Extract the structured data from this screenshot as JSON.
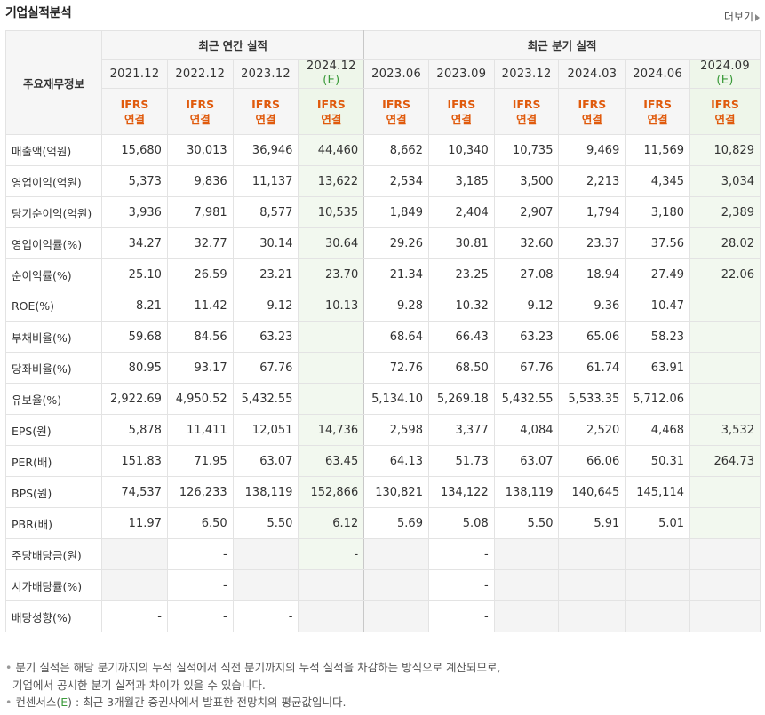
{
  "header": {
    "title": "기업실적분석",
    "more_label": "더보기"
  },
  "table": {
    "row_head": "주요재무정보",
    "group_annual": "최근 연간 실적",
    "group_quarter": "최근 분기 실적",
    "periods": [
      {
        "label": "2021.12",
        "est": ""
      },
      {
        "label": "2022.12",
        "est": ""
      },
      {
        "label": "2023.12",
        "est": ""
      },
      {
        "label": "2024.12",
        "est": "(E)"
      },
      {
        "label": "2023.06",
        "est": ""
      },
      {
        "label": "2023.09",
        "est": ""
      },
      {
        "label": "2023.12",
        "est": ""
      },
      {
        "label": "2024.03",
        "est": ""
      },
      {
        "label": "2024.06",
        "est": ""
      },
      {
        "label": "2024.09",
        "est": "(E)"
      }
    ],
    "ifrs_line1": "IFRS",
    "ifrs_line2": "연결",
    "rows": [
      {
        "label": "매출액(억원)",
        "values": [
          "15,680",
          "30,013",
          "36,946",
          "44,460",
          "8,662",
          "10,340",
          "10,735",
          "9,469",
          "11,569",
          "10,829"
        ]
      },
      {
        "label": "영업이익(억원)",
        "values": [
          "5,373",
          "9,836",
          "11,137",
          "13,622",
          "2,534",
          "3,185",
          "3,500",
          "2,213",
          "4,345",
          "3,034"
        ]
      },
      {
        "label": "당기순이익(억원)",
        "values": [
          "3,936",
          "7,981",
          "8,577",
          "10,535",
          "1,849",
          "2,404",
          "2,907",
          "1,794",
          "3,180",
          "2,389"
        ]
      },
      {
        "label": "영업이익률(%)",
        "values": [
          "34.27",
          "32.77",
          "30.14",
          "30.64",
          "29.26",
          "30.81",
          "32.60",
          "23.37",
          "37.56",
          "28.02"
        ]
      },
      {
        "label": "순이익률(%)",
        "values": [
          "25.10",
          "26.59",
          "23.21",
          "23.70",
          "21.34",
          "23.25",
          "27.08",
          "18.94",
          "27.49",
          "22.06"
        ]
      },
      {
        "label": "ROE(%)",
        "values": [
          "8.21",
          "11.42",
          "9.12",
          "10.13",
          "9.28",
          "10.32",
          "9.12",
          "9.36",
          "10.47",
          ""
        ]
      },
      {
        "label": "부채비율(%)",
        "values": [
          "59.68",
          "84.56",
          "63.23",
          "",
          "68.64",
          "66.43",
          "63.23",
          "65.06",
          "58.23",
          ""
        ]
      },
      {
        "label": "당좌비율(%)",
        "values": [
          "80.95",
          "93.17",
          "67.76",
          "",
          "72.76",
          "68.50",
          "67.76",
          "61.74",
          "63.91",
          ""
        ]
      },
      {
        "label": "유보율(%)",
        "values": [
          "2,922.69",
          "4,950.52",
          "5,432.55",
          "",
          "5,134.10",
          "5,269.18",
          "5,432.55",
          "5,533.35",
          "5,712.06",
          ""
        ]
      },
      {
        "label": "EPS(원)",
        "values": [
          "5,878",
          "11,411",
          "12,051",
          "14,736",
          "2,598",
          "3,377",
          "4,084",
          "2,520",
          "4,468",
          "3,532"
        ]
      },
      {
        "label": "PER(배)",
        "values": [
          "151.83",
          "71.95",
          "63.07",
          "63.45",
          "64.13",
          "51.73",
          "63.07",
          "66.06",
          "50.31",
          "264.73"
        ]
      },
      {
        "label": "BPS(원)",
        "values": [
          "74,537",
          "126,233",
          "138,119",
          "152,866",
          "130,821",
          "134,122",
          "138,119",
          "140,645",
          "145,114",
          ""
        ]
      },
      {
        "label": "PBR(배)",
        "values": [
          "11.97",
          "6.50",
          "5.50",
          "6.12",
          "5.69",
          "5.08",
          "5.50",
          "5.91",
          "5.01",
          ""
        ]
      },
      {
        "label": "주당배당금(원)",
        "values": [
          "",
          "-",
          "",
          "-",
          "",
          "-",
          "",
          "",
          "",
          ""
        ]
      },
      {
        "label": "시가배당률(%)",
        "values": [
          "",
          "-",
          "",
          "",
          "",
          "-",
          "",
          "",
          "",
          ""
        ]
      },
      {
        "label": "배당성향(%)",
        "values": [
          "-",
          "-",
          "-",
          "",
          "",
          "-",
          "",
          "",
          "",
          ""
        ]
      }
    ]
  },
  "notes": {
    "line1": "분기 실적은 해당 분기까지의 누적 실적에서 직전 분기까지의 누적 실적을 차감하는 방식으로 계산되므로,",
    "line2": "기업에서 공시한 분기 실적과 차이가 있을 수 있습니다.",
    "line3_a": "컨센서스(",
    "line3_e": "E",
    "line3_b": ") : 최근 3개월간 증권사에서 발표한 전망치의 평균값입니다."
  }
}
